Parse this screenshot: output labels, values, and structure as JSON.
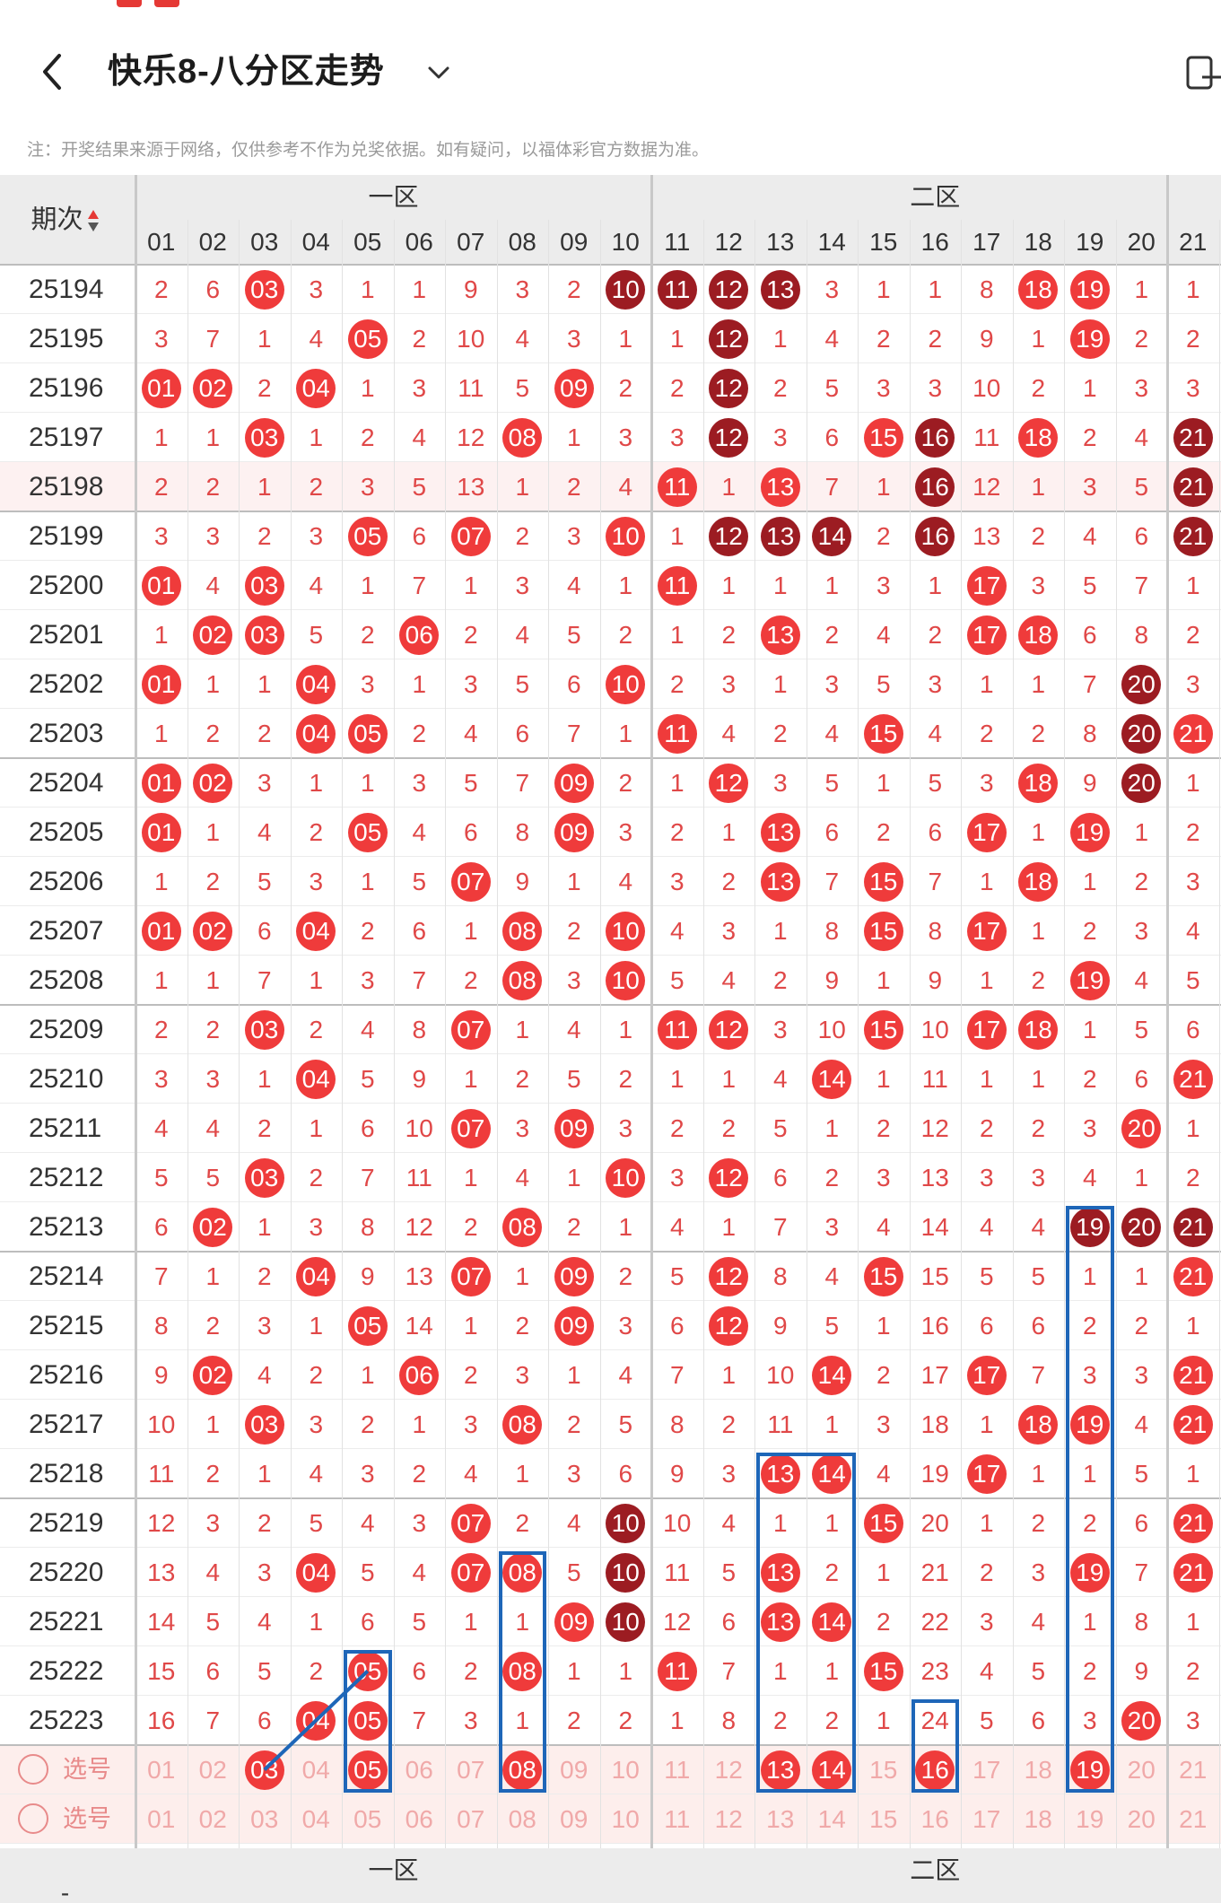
{
  "header": {
    "title": "快乐8-八分区走势",
    "back_icon": "back-chevron-icon",
    "dropdown_icon": "chevron-down-icon",
    "device_icon": "device-toggle-icon"
  },
  "notice": "注：开奖结果来源于网络，仅供参考不作为兑奖依据。如有疑问，以福体彩官方数据为准。",
  "table": {
    "issue_header": "期次",
    "zones": [
      "一区",
      "二区"
    ],
    "columns": [
      "01",
      "02",
      "03",
      "04",
      "05",
      "06",
      "07",
      "08",
      "09",
      "10",
      "11",
      "12",
      "13",
      "14",
      "15",
      "16",
      "17",
      "18",
      "19",
      "20",
      "21"
    ],
    "rows": [
      {
        "issue": "25194",
        "cells": [
          "2",
          "6",
          "B03",
          "3",
          "1",
          "1",
          "9",
          "3",
          "2",
          "D10",
          "D11",
          "D12",
          "D13",
          "3",
          "1",
          "1",
          "8",
          "B18",
          "B19",
          "1",
          "1"
        ]
      },
      {
        "issue": "25195",
        "cells": [
          "3",
          "7",
          "1",
          "4",
          "B05",
          "2",
          "10",
          "4",
          "3",
          "1",
          "1",
          "D12",
          "1",
          "4",
          "2",
          "2",
          "9",
          "1",
          "B19",
          "2",
          "2"
        ]
      },
      {
        "issue": "25196",
        "cells": [
          "B01",
          "B02",
          "2",
          "B04",
          "1",
          "3",
          "11",
          "5",
          "B09",
          "2",
          "2",
          "D12",
          "2",
          "5",
          "3",
          "3",
          "10",
          "2",
          "1",
          "3",
          "3"
        ]
      },
      {
        "issue": "25197",
        "cells": [
          "1",
          "1",
          "B03",
          "1",
          "2",
          "4",
          "12",
          "B08",
          "1",
          "3",
          "3",
          "D12",
          "3",
          "6",
          "B15",
          "D16",
          "11",
          "B18",
          "2",
          "4",
          "D21"
        ]
      },
      {
        "issue": "25198",
        "cells": [
          "2",
          "2",
          "1",
          "2",
          "3",
          "5",
          "13",
          "1",
          "2",
          "4",
          "B11",
          "1",
          "B13",
          "7",
          "1",
          "D16",
          "12",
          "1",
          "3",
          "5",
          "D21"
        ]
      },
      {
        "issue": "25199",
        "cells": [
          "3",
          "3",
          "2",
          "3",
          "B05",
          "6",
          "B07",
          "2",
          "3",
          "B10",
          "1",
          "D12",
          "D13",
          "D14",
          "2",
          "D16",
          "13",
          "2",
          "4",
          "6",
          "D21"
        ]
      },
      {
        "issue": "25200",
        "cells": [
          "B01",
          "4",
          "B03",
          "4",
          "1",
          "7",
          "1",
          "3",
          "4",
          "1",
          "B11",
          "1",
          "1",
          "1",
          "3",
          "1",
          "B17",
          "3",
          "5",
          "7",
          "1"
        ]
      },
      {
        "issue": "25201",
        "cells": [
          "1",
          "B02",
          "B03",
          "5",
          "2",
          "B06",
          "2",
          "4",
          "5",
          "2",
          "1",
          "2",
          "B13",
          "2",
          "4",
          "2",
          "B17",
          "B18",
          "6",
          "8",
          "2"
        ]
      },
      {
        "issue": "25202",
        "cells": [
          "B01",
          "1",
          "1",
          "B04",
          "3",
          "1",
          "3",
          "5",
          "6",
          "B10",
          "2",
          "3",
          "1",
          "3",
          "5",
          "3",
          "1",
          "1",
          "7",
          "D20",
          "3"
        ]
      },
      {
        "issue": "25203",
        "cells": [
          "1",
          "2",
          "2",
          "B04",
          "B05",
          "2",
          "4",
          "6",
          "7",
          "1",
          "B11",
          "4",
          "2",
          "4",
          "B15",
          "4",
          "2",
          "2",
          "8",
          "D20",
          "B21"
        ]
      },
      {
        "issue": "25204",
        "cells": [
          "B01",
          "B02",
          "3",
          "1",
          "1",
          "3",
          "5",
          "7",
          "B09",
          "2",
          "1",
          "B12",
          "3",
          "5",
          "1",
          "5",
          "3",
          "B18",
          "9",
          "D20",
          "1"
        ]
      },
      {
        "issue": "25205",
        "cells": [
          "B01",
          "1",
          "4",
          "2",
          "B05",
          "4",
          "6",
          "8",
          "B09",
          "3",
          "2",
          "1",
          "B13",
          "6",
          "2",
          "6",
          "B17",
          "1",
          "B19",
          "1",
          "2"
        ]
      },
      {
        "issue": "25206",
        "cells": [
          "1",
          "2",
          "5",
          "3",
          "1",
          "5",
          "B07",
          "9",
          "1",
          "4",
          "3",
          "2",
          "B13",
          "7",
          "B15",
          "7",
          "1",
          "B18",
          "1",
          "2",
          "3"
        ]
      },
      {
        "issue": "25207",
        "cells": [
          "B01",
          "B02",
          "6",
          "B04",
          "2",
          "6",
          "1",
          "B08",
          "2",
          "B10",
          "4",
          "3",
          "1",
          "8",
          "B15",
          "8",
          "B17",
          "1",
          "2",
          "3",
          "4"
        ]
      },
      {
        "issue": "25208",
        "cells": [
          "1",
          "1",
          "7",
          "1",
          "3",
          "7",
          "2",
          "B08",
          "3",
          "B10",
          "5",
          "4",
          "2",
          "9",
          "1",
          "9",
          "1",
          "2",
          "B19",
          "4",
          "5"
        ]
      },
      {
        "issue": "25209",
        "cells": [
          "2",
          "2",
          "B03",
          "2",
          "4",
          "8",
          "B07",
          "1",
          "4",
          "1",
          "B11",
          "B12",
          "3",
          "10",
          "B15",
          "10",
          "B17",
          "B18",
          "1",
          "5",
          "6"
        ]
      },
      {
        "issue": "25210",
        "cells": [
          "3",
          "3",
          "1",
          "B04",
          "5",
          "9",
          "1",
          "2",
          "5",
          "2",
          "1",
          "1",
          "4",
          "B14",
          "1",
          "11",
          "1",
          "1",
          "2",
          "6",
          "B21"
        ]
      },
      {
        "issue": "25211",
        "cells": [
          "4",
          "4",
          "2",
          "1",
          "6",
          "10",
          "B07",
          "3",
          "B09",
          "3",
          "2",
          "2",
          "5",
          "1",
          "2",
          "12",
          "2",
          "2",
          "3",
          "B20",
          "1"
        ]
      },
      {
        "issue": "25212",
        "cells": [
          "5",
          "5",
          "B03",
          "2",
          "7",
          "11",
          "1",
          "4",
          "1",
          "B10",
          "3",
          "B12",
          "6",
          "2",
          "3",
          "13",
          "3",
          "3",
          "4",
          "1",
          "2"
        ]
      },
      {
        "issue": "25213",
        "cells": [
          "6",
          "B02",
          "1",
          "3",
          "8",
          "12",
          "2",
          "B08",
          "2",
          "1",
          "4",
          "1",
          "7",
          "3",
          "4",
          "14",
          "4",
          "4",
          "D19",
          "D20",
          "D21"
        ]
      },
      {
        "issue": "25214",
        "cells": [
          "7",
          "1",
          "2",
          "B04",
          "9",
          "13",
          "B07",
          "1",
          "B09",
          "2",
          "5",
          "B12",
          "8",
          "4",
          "B15",
          "15",
          "5",
          "5",
          "1",
          "1",
          "B21"
        ]
      },
      {
        "issue": "25215",
        "cells": [
          "8",
          "2",
          "3",
          "1",
          "B05",
          "14",
          "1",
          "2",
          "B09",
          "3",
          "6",
          "B12",
          "9",
          "5",
          "1",
          "16",
          "6",
          "6",
          "2",
          "2",
          "1"
        ]
      },
      {
        "issue": "25216",
        "cells": [
          "9",
          "B02",
          "4",
          "2",
          "1",
          "B06",
          "2",
          "3",
          "1",
          "4",
          "7",
          "1",
          "10",
          "B14",
          "2",
          "17",
          "B17",
          "7",
          "3",
          "3",
          "B21"
        ]
      },
      {
        "issue": "25217",
        "cells": [
          "10",
          "1",
          "B03",
          "3",
          "2",
          "1",
          "3",
          "B08",
          "2",
          "5",
          "8",
          "2",
          "11",
          "1",
          "3",
          "18",
          "1",
          "B18",
          "B19",
          "4",
          "B21"
        ]
      },
      {
        "issue": "25218",
        "cells": [
          "11",
          "2",
          "1",
          "4",
          "3",
          "2",
          "4",
          "1",
          "3",
          "6",
          "9",
          "3",
          "B13",
          "B14",
          "4",
          "19",
          "B17",
          "1",
          "1",
          "5",
          "1"
        ]
      },
      {
        "issue": "25219",
        "cells": [
          "12",
          "3",
          "2",
          "5",
          "4",
          "3",
          "B07",
          "2",
          "4",
          "D10",
          "10",
          "4",
          "1",
          "1",
          "B15",
          "20",
          "1",
          "2",
          "2",
          "6",
          "B21"
        ]
      },
      {
        "issue": "25220",
        "cells": [
          "13",
          "4",
          "3",
          "B04",
          "5",
          "4",
          "B07",
          "B08",
          "5",
          "D10",
          "11",
          "5",
          "B13",
          "2",
          "1",
          "21",
          "2",
          "3",
          "B19",
          "7",
          "B21"
        ]
      },
      {
        "issue": "25221",
        "cells": [
          "14",
          "5",
          "4",
          "1",
          "6",
          "5",
          "1",
          "1",
          "B09",
          "D10",
          "12",
          "6",
          "B13",
          "B14",
          "2",
          "22",
          "3",
          "4",
          "1",
          "8",
          "1"
        ]
      },
      {
        "issue": "25222",
        "cells": [
          "15",
          "6",
          "5",
          "2",
          "B05",
          "6",
          "2",
          "B08",
          "1",
          "1",
          "B11",
          "7",
          "1",
          "1",
          "B15",
          "23",
          "4",
          "5",
          "2",
          "9",
          "2"
        ]
      },
      {
        "issue": "25223",
        "cells": [
          "16",
          "7",
          "6",
          "B04",
          "B05",
          "7",
          "3",
          "1",
          "2",
          "2",
          "1",
          "8",
          "2",
          "2",
          "1",
          "24",
          "5",
          "6",
          "3",
          "B20",
          "3"
        ]
      }
    ],
    "select_rows": [
      {
        "label": "选号",
        "cells": [
          "01",
          "02",
          "B03",
          "04",
          "B05",
          "06",
          "07",
          "B08",
          "09",
          "10",
          "11",
          "12",
          "B13",
          "B14",
          "15",
          "B16",
          "17",
          "18",
          "B19",
          "20",
          "21"
        ]
      },
      {
        "label": "选号",
        "cells": [
          "01",
          "02",
          "03",
          "04",
          "05",
          "06",
          "07",
          "08",
          "09",
          "10",
          "11",
          "12",
          "13",
          "14",
          "15",
          "16",
          "17",
          "18",
          "19",
          "20",
          "21"
        ]
      }
    ],
    "footer_zones": [
      "一区",
      "二区"
    ],
    "footer_left": "-"
  },
  "colors": {
    "ball_red": "#ef3b3b",
    "ball_dark": "#9c1c22",
    "miss_text": "#e04848",
    "select_text": "#f0a9a9",
    "annotation_blue": "#1e66b8"
  }
}
